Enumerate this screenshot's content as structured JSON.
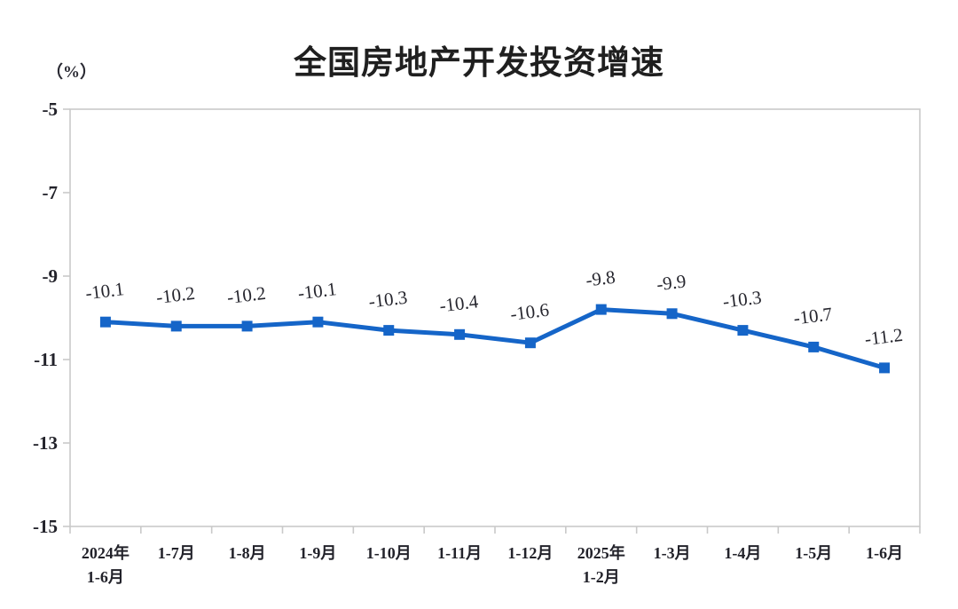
{
  "chart_data": {
    "type": "line",
    "title": "全国房地产开发投资增速",
    "unit_label": "（%）",
    "categories": [
      "2024年\n1-6月",
      "1-7月",
      "1-8月",
      "1-9月",
      "1-10月",
      "1-11月",
      "1-12月",
      "2025年\n1-2月",
      "1-3月",
      "1-4月",
      "1-5月",
      "1-6月"
    ],
    "values": [
      -10.1,
      -10.2,
      -10.2,
      -10.1,
      -10.3,
      -10.4,
      -10.6,
      -9.8,
      -9.9,
      -10.3,
      -10.7,
      -11.2
    ],
    "data_labels": [
      "-10.1",
      "-10.2",
      "-10.2",
      "-10.1",
      "-10.3",
      "-10.4",
      "-10.6",
      "-9.8",
      "-9.9",
      "-10.3",
      "-10.7",
      "-11.2"
    ],
    "xlabel": "",
    "ylabel": "（%）",
    "ylim": [
      -15,
      -5
    ],
    "yticks": [
      -5,
      -7,
      -9,
      -11,
      -13,
      -15
    ],
    "grid": false,
    "legend": false,
    "marker": "square",
    "colors": {
      "line": "#1565c8",
      "axis": "#c9c9c9",
      "text": "#26262e"
    }
  }
}
